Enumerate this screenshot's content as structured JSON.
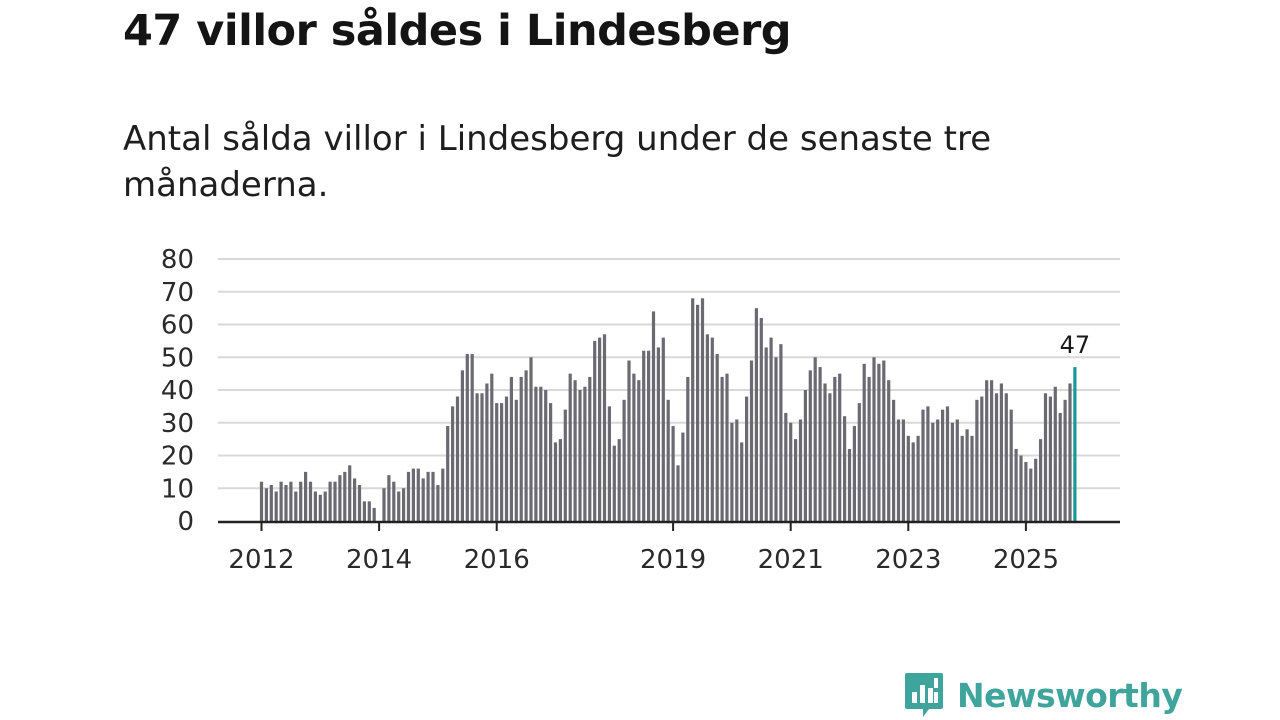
{
  "title": "47 villor såldes i Lindesberg",
  "subtitle": "Antal sålda villor i Lindesberg under de senaste tre månaderna.",
  "brand": {
    "name": "Newsworthy",
    "color": "#3fa59c",
    "icon": "newsworthy-logo-icon"
  },
  "colors": {
    "bar": "#6b6a72",
    "highlight": "#159b93",
    "grid": "#d9d9d9",
    "axis": "#222222"
  },
  "chart_data": {
    "type": "bar",
    "title": "Antal sålda villor i Lindesberg under de senaste tre månaderna.",
    "xlabel": "",
    "ylabel": "",
    "ylim": [
      0,
      80
    ],
    "yticks": [
      0,
      10,
      20,
      30,
      40,
      50,
      60,
      70,
      80
    ],
    "xtick_labels": [
      {
        "label": "2012",
        "index": 0
      },
      {
        "label": "2014",
        "index": 24
      },
      {
        "label": "2016",
        "index": 48
      },
      {
        "label": "2019",
        "index": 84
      },
      {
        "label": "2021",
        "index": 108
      },
      {
        "label": "2023",
        "index": 132
      },
      {
        "label": "2025",
        "index": 156
      }
    ],
    "start": "2012-01",
    "frequency": "monthly",
    "values": [
      12,
      10,
      11,
      9,
      12,
      11,
      12,
      9,
      12,
      15,
      12,
      9,
      8,
      9,
      12,
      12,
      14,
      15,
      17,
      13,
      11,
      6,
      6,
      4,
      0,
      10,
      14,
      12,
      9,
      10,
      15,
      16,
      16,
      13,
      15,
      15,
      11,
      16,
      29,
      35,
      38,
      46,
      51,
      51,
      39,
      39,
      42,
      45,
      36,
      36,
      38,
      44,
      37,
      44,
      46,
      50,
      41,
      41,
      40,
      36,
      24,
      25,
      34,
      45,
      43,
      40,
      41,
      44,
      55,
      56,
      57,
      35,
      23,
      25,
      37,
      49,
      45,
      43,
      52,
      52,
      64,
      53,
      56,
      37,
      29,
      17,
      27,
      44,
      68,
      66,
      68,
      57,
      56,
      51,
      44,
      45,
      30,
      31,
      24,
      38,
      49,
      65,
      62,
      53,
      56,
      50,
      54,
      33,
      30,
      25,
      31,
      40,
      46,
      50,
      47,
      42,
      39,
      44,
      45,
      32,
      22,
      29,
      36,
      48,
      44,
      50,
      48,
      49,
      43,
      37,
      31,
      31,
      26,
      24,
      26,
      34,
      35,
      30,
      31,
      34,
      35,
      30,
      31,
      26,
      28,
      26,
      37,
      38,
      43,
      43,
      39,
      42,
      39,
      34,
      22,
      20,
      18,
      16,
      19,
      25,
      39,
      38,
      41,
      33,
      37,
      42,
      47
    ],
    "highlight_last": true,
    "last_value_label": "47"
  }
}
